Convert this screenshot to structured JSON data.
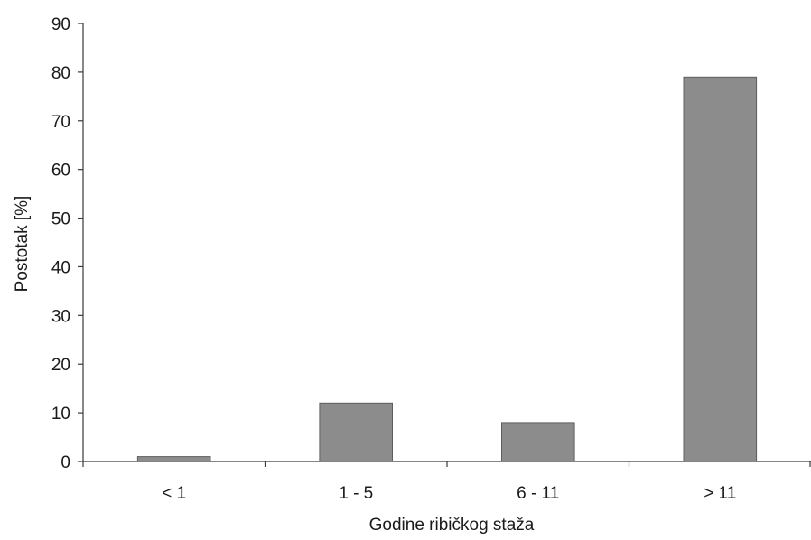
{
  "chart_data": {
    "type": "bar",
    "categories": [
      "< 1",
      "1 - 5",
      "6 - 11",
      "> 11"
    ],
    "values": [
      1,
      12,
      8,
      79
    ],
    "xlabel": "Godine ribičkog staža",
    "ylabel": "Postotak [%]",
    "ylim": [
      0,
      90
    ],
    "yticks": [
      0,
      10,
      20,
      30,
      40,
      50,
      60,
      70,
      80,
      90
    ],
    "grid": false,
    "legend": "none",
    "colors": {
      "bar_fill": "#8c8c8c",
      "bar_stroke": "#5e5e5e",
      "axis": "#3a3a3a"
    }
  }
}
